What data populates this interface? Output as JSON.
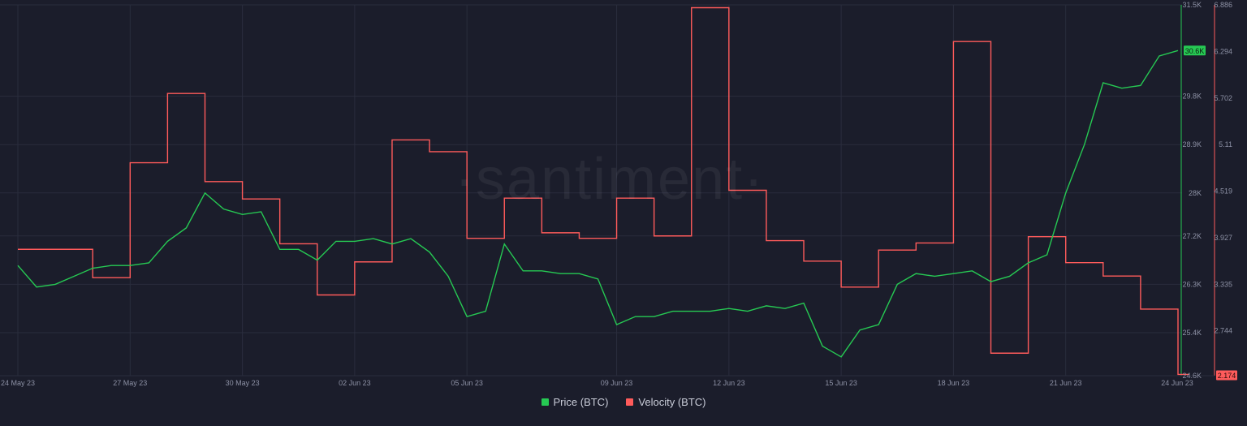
{
  "watermark": "·santiment·",
  "colors": {
    "background": "#1b1d2b",
    "grid": "#2a2d3d",
    "price": "#26c953",
    "velocity": "#ff5b5b",
    "tick": "#8d91a5"
  },
  "chart_data": {
    "type": "line",
    "x_labels": [
      "24 May 23",
      "27 May 23",
      "30 May 23",
      "02 Jun 23",
      "05 Jun 23",
      "09 Jun 23",
      "12 Jun 23",
      "15 Jun 23",
      "18 Jun 23",
      "21 Jun 23",
      "24 Jun 23"
    ],
    "x_range": [
      "2023-05-24",
      "2023-06-24"
    ],
    "grid": true,
    "legend_position": "bottom-center",
    "price_axis": {
      "ticks": [
        "31.5K",
        "29.8K",
        "28.9K",
        "28K",
        "27.2K",
        "26.3K",
        "25.4K",
        "24.6K"
      ],
      "tick_values": [
        31500,
        29800,
        28900,
        28000,
        27200,
        26300,
        25400,
        24600
      ],
      "ylim": [
        24600,
        31500
      ],
      "current_label": "30.6K"
    },
    "velocity_axis": {
      "ticks": [
        "6.886",
        "6.294",
        "5.702",
        "5.11",
        "4.519",
        "3.927",
        "3.335",
        "2.744"
      ],
      "tick_values": [
        6.886,
        6.294,
        5.702,
        5.11,
        4.519,
        3.927,
        3.335,
        2.744
      ],
      "ylim": [
        2.174,
        6.886
      ],
      "current_label": "2.174"
    },
    "series": [
      {
        "name": "Price (BTC)",
        "color": "#26c953",
        "x": [
          "2023-05-24",
          "2023-05-24 12:00",
          "2023-05-25",
          "2023-05-25 12:00",
          "2023-05-26",
          "2023-05-26 12:00",
          "2023-05-27",
          "2023-05-27 12:00",
          "2023-05-28",
          "2023-05-28 12:00",
          "2023-05-29",
          "2023-05-29 12:00",
          "2023-05-30",
          "2023-05-30 12:00",
          "2023-05-31",
          "2023-05-31 12:00",
          "2023-06-01",
          "2023-06-01 12:00",
          "2023-06-02",
          "2023-06-02 12:00",
          "2023-06-03",
          "2023-06-03 12:00",
          "2023-06-04",
          "2023-06-04 12:00",
          "2023-06-05",
          "2023-06-05 12:00",
          "2023-06-06",
          "2023-06-06 12:00",
          "2023-06-07",
          "2023-06-07 12:00",
          "2023-06-08",
          "2023-06-08 12:00",
          "2023-06-09",
          "2023-06-09 12:00",
          "2023-06-10",
          "2023-06-10 12:00",
          "2023-06-11",
          "2023-06-11 12:00",
          "2023-06-12",
          "2023-06-12 12:00",
          "2023-06-13",
          "2023-06-13 12:00",
          "2023-06-14",
          "2023-06-14 12:00",
          "2023-06-15",
          "2023-06-15 12:00",
          "2023-06-16",
          "2023-06-16 12:00",
          "2023-06-17",
          "2023-06-17 12:00",
          "2023-06-18",
          "2023-06-18 12:00",
          "2023-06-19",
          "2023-06-19 12:00",
          "2023-06-20",
          "2023-06-20 12:00",
          "2023-06-21",
          "2023-06-21 12:00",
          "2023-06-22",
          "2023-06-22 12:00",
          "2023-06-23",
          "2023-06-23 12:00",
          "2023-06-24"
        ],
        "values": [
          26650,
          26250,
          26300,
          26450,
          26600,
          26650,
          26650,
          26700,
          27100,
          27350,
          28000,
          27700,
          27600,
          27650,
          26950,
          26950,
          26750,
          27100,
          27100,
          27150,
          27050,
          27150,
          26900,
          26450,
          25700,
          25800,
          27050,
          26550,
          26550,
          26500,
          26500,
          26400,
          25550,
          25700,
          25700,
          25800,
          25800,
          25800,
          25850,
          25800,
          25900,
          25850,
          25950,
          25150,
          24950,
          25450,
          25550,
          26300,
          26500,
          26450,
          26500,
          26550,
          26350,
          26450,
          26700,
          26850,
          28000,
          28900,
          30050,
          29950,
          30000,
          30550,
          30650
        ]
      },
      {
        "name": "Velocity (BTC)",
        "color": "#ff5b5b",
        "x": [
          "2023-05-24",
          "2023-05-25",
          "2023-05-26",
          "2023-05-27",
          "2023-05-28",
          "2023-05-29",
          "2023-05-30",
          "2023-05-31",
          "2023-06-01",
          "2023-06-02",
          "2023-06-03",
          "2023-06-04",
          "2023-06-05",
          "2023-06-06",
          "2023-06-07",
          "2023-06-08",
          "2023-06-09",
          "2023-06-10",
          "2023-06-11",
          "2023-06-12",
          "2023-06-13",
          "2023-06-14",
          "2023-06-15",
          "2023-06-16",
          "2023-06-17",
          "2023-06-18",
          "2023-06-19",
          "2023-06-20",
          "2023-06-21",
          "2023-06-22",
          "2023-06-23",
          "2023-06-24"
        ],
        "values": [
          3.78,
          3.78,
          3.42,
          4.88,
          5.76,
          4.64,
          4.42,
          3.85,
          3.2,
          3.62,
          5.17,
          5.02,
          3.92,
          4.43,
          3.99,
          3.92,
          4.43,
          3.95,
          6.85,
          4.53,
          3.89,
          3.63,
          3.3,
          3.77,
          3.86,
          6.42,
          2.46,
          3.94,
          3.61,
          3.44,
          3.02,
          2.19
        ]
      }
    ]
  }
}
